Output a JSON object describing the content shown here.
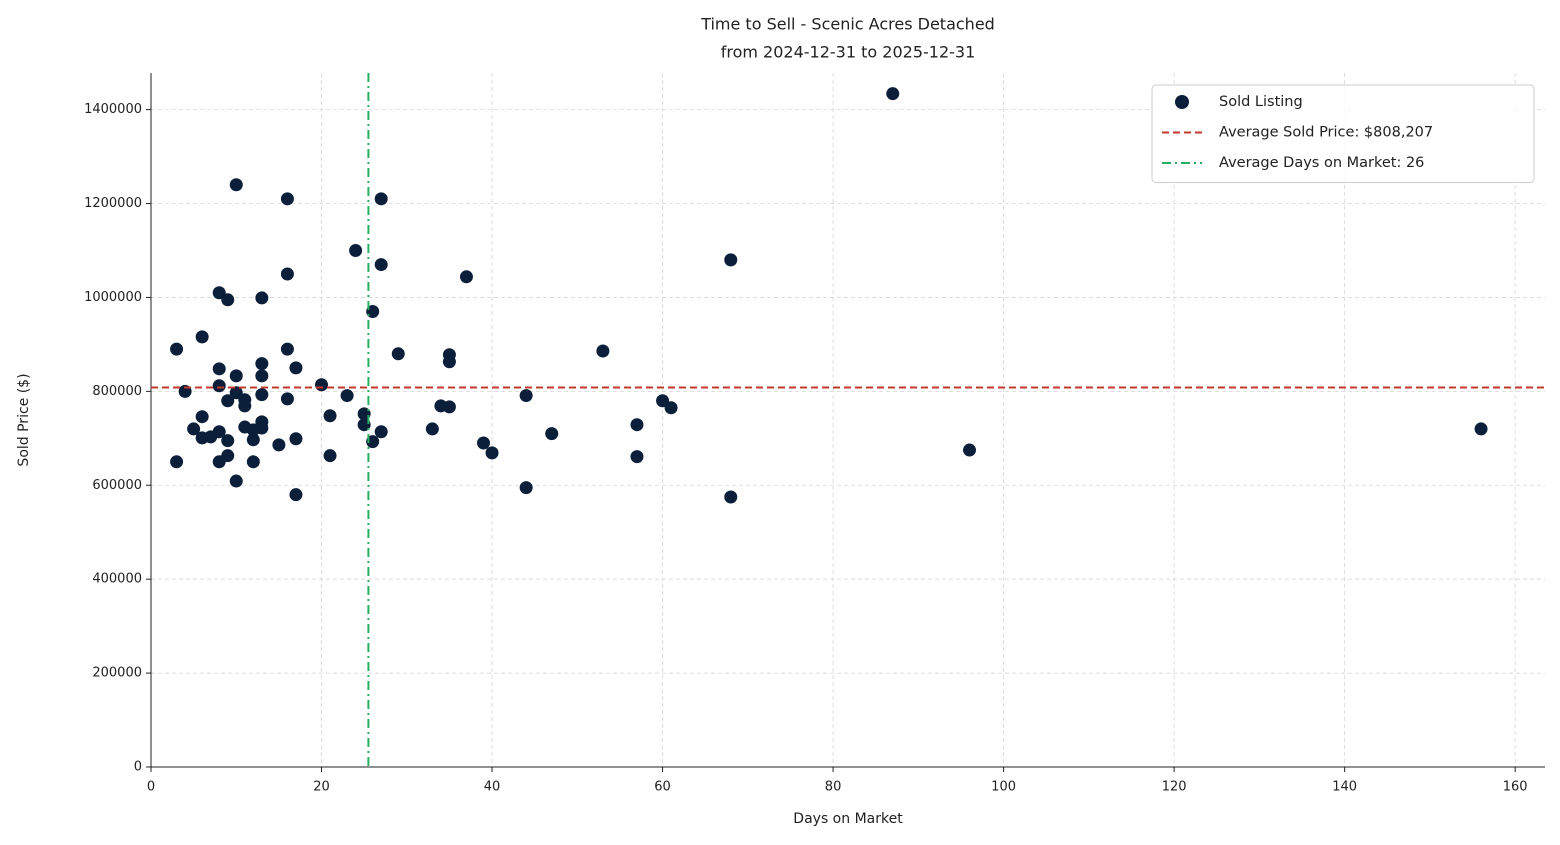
{
  "chart_data": {
    "type": "scatter",
    "title": "Time to Sell - Scenic Acres Detached",
    "subtitle": "from 2024-12-31 to 2025-12-31",
    "x_label": "Days on Market",
    "y_label": "Sold Price ($)",
    "x": [
      3,
      4,
      3,
      5,
      6,
      6,
      6,
      7,
      8,
      8,
      8,
      8,
      8,
      9,
      9,
      9,
      9,
      10,
      10,
      10,
      10,
      11,
      11,
      11,
      12,
      12,
      13,
      13,
      13,
      13,
      13,
      13,
      12,
      15,
      16,
      16,
      16,
      16,
      17,
      17,
      17,
      20,
      21,
      21,
      23,
      24,
      25,
      25,
      26,
      26,
      27,
      27,
      27,
      29,
      33,
      34,
      35,
      35,
      35,
      37,
      39,
      40,
      44,
      44,
      47,
      53,
      57,
      57,
      60,
      61,
      68,
      68,
      87,
      96,
      156
    ],
    "series": [
      {
        "name": "Sold Listing",
        "color": "#0b1f3a",
        "values": [
          890000,
          800000,
          650000,
          720000,
          916000,
          746000,
          701000,
          703000,
          848000,
          812000,
          714000,
          650000,
          1010000,
          995000,
          780000,
          695000,
          663000,
          1240000,
          833000,
          797000,
          609000,
          782000,
          769000,
          724000,
          697000,
          650000,
          999000,
          859000,
          833000,
          793000,
          735000,
          722000,
          718000,
          686000,
          1210000,
          1050000,
          890000,
          784000,
          850000,
          699000,
          580000,
          814000,
          748000,
          663000,
          791000,
          1100000,
          752000,
          729000,
          970000,
          693000,
          1210000,
          1070000,
          714000,
          880000,
          720000,
          769000,
          878000,
          863000,
          767000,
          1044000,
          690000,
          669000,
          791000,
          595000,
          710000,
          886000,
          729000,
          661000,
          780000,
          765000,
          1080000,
          575000,
          1434000,
          675000,
          720000
        ]
      }
    ],
    "reference_lines": [
      {
        "name": "Average Sold Price: $808,207",
        "axis": "y",
        "value": 808207,
        "color": "#c0392b",
        "dash": "dashed"
      },
      {
        "name": "Average Days on Market: 26",
        "axis": "x",
        "value": 25.5,
        "color": "#27ae60",
        "dash": "dashdot"
      }
    ],
    "xlim": [
      0,
      163.5
    ],
    "ylim": [
      0,
      1478000
    ],
    "xticks": [
      0,
      20,
      40,
      60,
      80,
      100,
      120,
      140,
      160
    ],
    "yticks": [
      0,
      200000,
      400000,
      600000,
      800000,
      1000000,
      1200000,
      1400000
    ],
    "grid": true,
    "legend": "upper right"
  }
}
